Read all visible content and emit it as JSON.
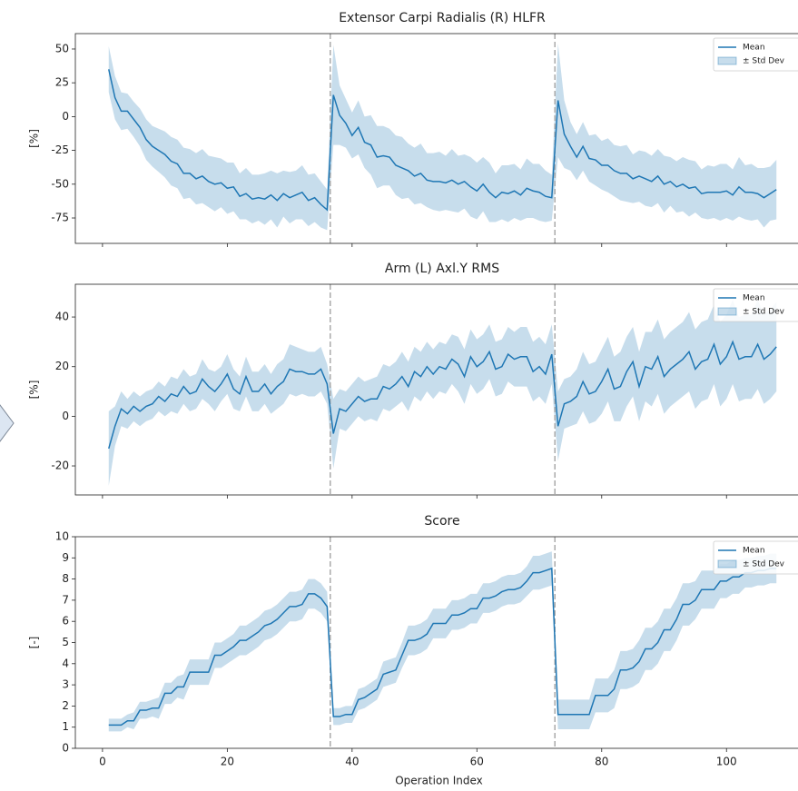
{
  "chart_data": [
    {
      "type": "line",
      "title": "Extensor Carpi Radialis (R) HLFR",
      "ylabel": "[%]",
      "xlabel": null,
      "show_xticklabels": false,
      "legend": "upper right",
      "xlim": [
        -4.35,
        113.35
      ],
      "ylim": [
        -93.8,
        61.4
      ],
      "xticks": [
        0,
        20,
        40,
        60,
        80,
        100
      ],
      "yticks": [
        -75,
        -50,
        -25,
        0,
        25,
        50
      ],
      "vlines": [
        36.5,
        72.5
      ],
      "x": [
        1,
        2,
        3,
        4,
        5,
        6,
        7,
        8,
        9,
        10,
        11,
        12,
        13,
        14,
        15,
        16,
        17,
        18,
        19,
        20,
        21,
        22,
        23,
        24,
        25,
        26,
        27,
        28,
        29,
        30,
        31,
        32,
        33,
        34,
        35,
        36,
        37,
        38,
        39,
        40,
        41,
        42,
        43,
        44,
        45,
        46,
        47,
        48,
        49,
        50,
        51,
        52,
        53,
        54,
        55,
        56,
        57,
        58,
        59,
        60,
        61,
        62,
        63,
        64,
        65,
        66,
        67,
        68,
        69,
        70,
        71,
        72,
        73,
        74,
        75,
        76,
        77,
        78,
        79,
        80,
        81,
        82,
        83,
        84,
        85,
        86,
        87,
        88,
        89,
        90,
        91,
        92,
        93,
        94,
        95,
        96,
        97,
        98,
        99,
        100,
        101,
        102,
        103,
        104,
        105,
        106,
        107,
        108
      ],
      "series": [
        {
          "name": "Mean",
          "color": "#1f77b4",
          "values": [
            35,
            14,
            4,
            4,
            -2,
            -8,
            -17,
            -22,
            -25,
            -28,
            -33,
            -35,
            -42,
            -42,
            -46,
            -44,
            -48,
            -50,
            -49,
            -53,
            -52,
            -59,
            -57,
            -61,
            -60,
            -61,
            -58,
            -62,
            -57,
            -60,
            -58,
            -56,
            -62,
            -60,
            -65,
            -69,
            16,
            1,
            -5,
            -14,
            -8,
            -19,
            -21,
            -30,
            -29,
            -30,
            -36,
            -38,
            -40,
            -44,
            -42,
            -47,
            -48,
            -48,
            -49,
            -47,
            -50,
            -48,
            -52,
            -55,
            -50,
            -56,
            -60,
            -56,
            -57,
            -55,
            -58,
            -53,
            -55,
            -56,
            -59,
            -60,
            12,
            -13,
            -22,
            -30,
            -22,
            -31,
            -32,
            -36,
            -36,
            -40,
            -42,
            -42,
            -46,
            -44,
            -46,
            -48,
            -44,
            -50,
            -48,
            -52,
            -50,
            -53,
            -52,
            -57,
            -56,
            -56,
            -56,
            -55,
            -58,
            -52,
            -56,
            -56,
            -57,
            -60,
            -57,
            -54
          ]
        }
      ],
      "band": {
        "name": "± Std Dev",
        "color": "#1f77b4",
        "values": [
          17,
          16,
          14,
          13,
          13,
          14,
          15,
          15,
          16,
          17,
          18,
          18,
          19,
          18,
          19,
          20,
          19,
          20,
          18,
          19,
          18,
          17,
          19,
          18,
          17,
          19,
          18,
          20,
          17,
          19,
          18,
          20,
          19,
          18,
          17,
          15,
          37,
          22,
          18,
          17,
          20,
          19,
          22,
          23,
          22,
          21,
          22,
          23,
          20,
          21,
          22,
          20,
          21,
          22,
          20,
          23,
          21,
          20,
          22,
          21,
          20,
          22,
          18,
          20,
          21,
          20,
          19,
          22,
          20,
          21,
          19,
          17,
          42,
          25,
          18,
          17,
          18,
          17,
          19,
          18,
          20,
          19,
          20,
          21,
          18,
          19,
          20,
          19,
          20,
          21,
          18,
          19,
          20,
          21,
          19,
          18,
          20,
          19,
          21,
          20,
          19,
          22,
          20,
          21,
          19,
          22,
          20,
          22
        ]
      }
    },
    {
      "type": "line",
      "title": "Arm (L) Axl.Y RMS",
      "ylabel": "[%]",
      "xlabel": null,
      "show_xticklabels": false,
      "legend": "upper right",
      "xlim": [
        -4.35,
        113.35
      ],
      "ylim": [
        -31.7,
        53.2
      ],
      "xticks": [
        0,
        20,
        40,
        60,
        80,
        100
      ],
      "yticks": [
        -20,
        0,
        20,
        40
      ],
      "vlines": [
        36.5,
        72.5
      ],
      "x": [
        1,
        2,
        3,
        4,
        5,
        6,
        7,
        8,
        9,
        10,
        11,
        12,
        13,
        14,
        15,
        16,
        17,
        18,
        19,
        20,
        21,
        22,
        23,
        24,
        25,
        26,
        27,
        28,
        29,
        30,
        31,
        32,
        33,
        34,
        35,
        36,
        37,
        38,
        39,
        40,
        41,
        42,
        43,
        44,
        45,
        46,
        47,
        48,
        49,
        50,
        51,
        52,
        53,
        54,
        55,
        56,
        57,
        58,
        59,
        60,
        61,
        62,
        63,
        64,
        65,
        66,
        67,
        68,
        69,
        70,
        71,
        72,
        73,
        74,
        75,
        76,
        77,
        78,
        79,
        80,
        81,
        82,
        83,
        84,
        85,
        86,
        87,
        88,
        89,
        90,
        91,
        92,
        93,
        94,
        95,
        96,
        97,
        98,
        99,
        100,
        101,
        102,
        103,
        104,
        105,
        106,
        107,
        108
      ],
      "series": [
        {
          "name": "Mean",
          "color": "#1f77b4",
          "values": [
            -13,
            -4,
            3,
            1,
            4,
            2,
            4,
            5,
            8,
            6,
            9,
            8,
            12,
            9,
            10,
            15,
            12,
            10,
            13,
            17,
            11,
            9,
            16,
            10,
            10,
            13,
            9,
            12,
            14,
            19,
            18,
            18,
            17,
            17,
            19,
            13,
            -7,
            3,
            2,
            5,
            8,
            6,
            7,
            7,
            12,
            11,
            13,
            16,
            12,
            18,
            16,
            20,
            17,
            20,
            19,
            23,
            21,
            16,
            24,
            20,
            22,
            26,
            19,
            20,
            25,
            23,
            24,
            24,
            18,
            20,
            17,
            25,
            -4,
            5,
            6,
            8,
            14,
            9,
            10,
            14,
            19,
            11,
            12,
            18,
            22,
            12,
            20,
            19,
            24,
            16,
            19,
            21,
            23,
            26,
            19,
            22,
            23,
            29,
            21,
            24,
            30,
            23,
            24,
            24,
            29,
            23,
            25,
            28
          ]
        }
      ],
      "band": {
        "name": "± Std Dev",
        "color": "#1f77b4",
        "values": [
          15,
          8,
          7,
          6,
          6,
          6,
          6,
          6,
          6,
          6,
          7,
          7,
          7,
          7,
          7,
          8,
          7,
          8,
          7,
          8,
          8,
          7,
          8,
          8,
          8,
          8,
          8,
          9,
          9,
          10,
          10,
          9,
          9,
          9,
          9,
          8,
          14,
          8,
          8,
          8,
          8,
          8,
          8,
          9,
          9,
          9,
          9,
          10,
          10,
          10,
          10,
          10,
          10,
          10,
          10,
          10,
          11,
          11,
          11,
          11,
          11,
          11,
          11,
          11,
          11,
          11,
          12,
          12,
          12,
          12,
          12,
          12,
          14,
          10,
          10,
          11,
          12,
          12,
          12,
          13,
          13,
          13,
          14,
          14,
          14,
          14,
          14,
          15,
          15,
          15,
          15,
          15,
          15,
          16,
          16,
          16,
          16,
          16,
          17,
          17,
          17,
          17,
          17,
          17,
          18,
          18,
          18,
          18
        ]
      }
    },
    {
      "type": "line",
      "title": "Score",
      "ylabel": "[-]",
      "xlabel": "Operation Index",
      "show_xticklabels": true,
      "legend": "upper right",
      "xlim": [
        -4.35,
        113.35
      ],
      "ylim": [
        0,
        10
      ],
      "xticks": [
        0,
        20,
        40,
        60,
        80,
        100
      ],
      "yticks": [
        0,
        1,
        2,
        3,
        4,
        5,
        6,
        7,
        8,
        9,
        10
      ],
      "vlines": [
        36.5,
        72.5
      ],
      "x": [
        1,
        2,
        3,
        4,
        5,
        6,
        7,
        8,
        9,
        10,
        11,
        12,
        13,
        14,
        15,
        16,
        17,
        18,
        19,
        20,
        21,
        22,
        23,
        24,
        25,
        26,
        27,
        28,
        29,
        30,
        31,
        32,
        33,
        34,
        35,
        36,
        37,
        38,
        39,
        40,
        41,
        42,
        43,
        44,
        45,
        46,
        47,
        48,
        49,
        50,
        51,
        52,
        53,
        54,
        55,
        56,
        57,
        58,
        59,
        60,
        61,
        62,
        63,
        64,
        65,
        66,
        67,
        68,
        69,
        70,
        71,
        72,
        73,
        74,
        75,
        76,
        77,
        78,
        79,
        80,
        81,
        82,
        83,
        84,
        85,
        86,
        87,
        88,
        89,
        90,
        91,
        92,
        93,
        94,
        95,
        96,
        97,
        98,
        99,
        100,
        101,
        102,
        103,
        104,
        105,
        106,
        107,
        108
      ],
      "series": [
        {
          "name": "Mean",
          "color": "#1f77b4",
          "values": [
            1.1,
            1.1,
            1.1,
            1.3,
            1.3,
            1.8,
            1.8,
            1.9,
            1.9,
            2.6,
            2.6,
            2.9,
            2.9,
            3.6,
            3.6,
            3.6,
            3.6,
            4.4,
            4.4,
            4.6,
            4.8,
            5.1,
            5.1,
            5.3,
            5.5,
            5.8,
            5.9,
            6.1,
            6.4,
            6.7,
            6.7,
            6.8,
            7.3,
            7.3,
            7.1,
            6.7,
            1.5,
            1.5,
            1.6,
            1.6,
            2.3,
            2.4,
            2.6,
            2.8,
            3.5,
            3.6,
            3.7,
            4.4,
            5.1,
            5.1,
            5.2,
            5.4,
            5.9,
            5.9,
            5.9,
            6.3,
            6.3,
            6.4,
            6.6,
            6.6,
            7.1,
            7.1,
            7.2,
            7.4,
            7.5,
            7.5,
            7.6,
            7.9,
            8.3,
            8.3,
            8.4,
            8.5,
            1.6,
            1.6,
            1.6,
            1.6,
            1.6,
            1.6,
            2.5,
            2.5,
            2.5,
            2.8,
            3.7,
            3.7,
            3.8,
            4.1,
            4.7,
            4.7,
            5.0,
            5.6,
            5.6,
            6.1,
            6.8,
            6.8,
            7.0,
            7.5,
            7.5,
            7.5,
            7.9,
            7.9,
            8.1,
            8.1,
            8.3,
            8.3,
            8.4,
            8.4,
            8.5,
            8.5
          ]
        }
      ],
      "band": {
        "name": "± Std Dev",
        "color": "#1f77b4",
        "values": [
          0.3,
          0.3,
          0.3,
          0.3,
          0.4,
          0.4,
          0.4,
          0.4,
          0.5,
          0.5,
          0.5,
          0.5,
          0.6,
          0.6,
          0.6,
          0.6,
          0.6,
          0.6,
          0.6,
          0.6,
          0.6,
          0.7,
          0.7,
          0.7,
          0.7,
          0.7,
          0.7,
          0.7,
          0.7,
          0.7,
          0.7,
          0.7,
          0.7,
          0.7,
          0.7,
          0.7,
          0.4,
          0.4,
          0.4,
          0.4,
          0.5,
          0.5,
          0.5,
          0.5,
          0.6,
          0.6,
          0.6,
          0.6,
          0.7,
          0.7,
          0.7,
          0.7,
          0.7,
          0.7,
          0.7,
          0.7,
          0.7,
          0.7,
          0.7,
          0.7,
          0.7,
          0.7,
          0.7,
          0.7,
          0.7,
          0.7,
          0.7,
          0.7,
          0.8,
          0.8,
          0.8,
          0.8,
          0.7,
          0.7,
          0.7,
          0.7,
          0.7,
          0.7,
          0.8,
          0.8,
          0.8,
          0.9,
          0.9,
          0.9,
          0.9,
          1.0,
          1.0,
          1.0,
          1.0,
          1.0,
          1.0,
          1.0,
          1.0,
          1.0,
          0.9,
          0.9,
          0.9,
          0.9,
          0.8,
          0.8,
          0.8,
          0.8,
          0.7,
          0.7,
          0.7,
          0.7,
          0.7,
          0.7
        ]
      }
    }
  ]
}
